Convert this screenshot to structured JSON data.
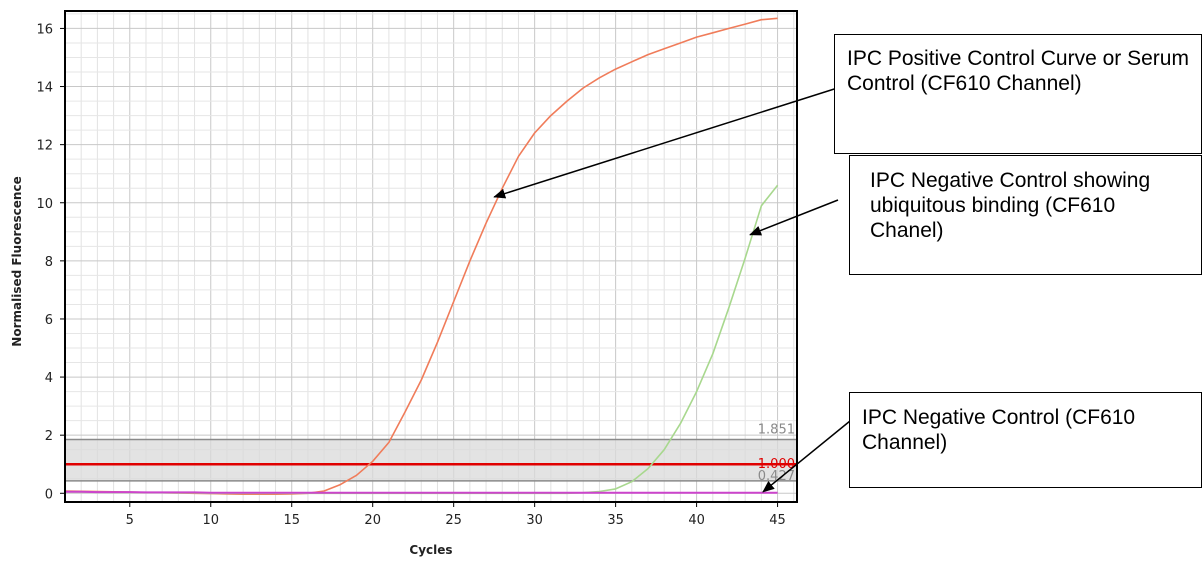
{
  "chart_data": {
    "type": "line",
    "xlabel": "Cycles",
    "ylabel": "Normalised Fluorescence",
    "xlim": [
      1,
      46.2
    ],
    "ylim": [
      -0.3,
      16.6
    ],
    "xticks": [
      5,
      10,
      15,
      20,
      25,
      30,
      35,
      40,
      45
    ],
    "yticks": [
      0,
      2,
      4,
      6,
      8,
      10,
      12,
      14,
      16
    ],
    "grid": true,
    "x": [
      1,
      2,
      3,
      4,
      5,
      6,
      7,
      8,
      9,
      10,
      11,
      12,
      13,
      14,
      15,
      16,
      17,
      18,
      19,
      20,
      21,
      22,
      23,
      24,
      25,
      26,
      27,
      28,
      29,
      30,
      31,
      32,
      33,
      34,
      35,
      36,
      37,
      38,
      39,
      40,
      41,
      42,
      43,
      44,
      45
    ],
    "series": [
      {
        "color": "#f07c5a",
        "values": [
          0.08,
          0.07,
          0.06,
          0.05,
          0.04,
          0.03,
          0.02,
          0.01,
          0.0,
          -0.01,
          -0.02,
          -0.03,
          -0.03,
          -0.03,
          -0.02,
          0.0,
          0.08,
          0.3,
          0.62,
          1.1,
          1.75,
          2.8,
          3.9,
          5.2,
          6.6,
          8.0,
          9.3,
          10.5,
          11.6,
          12.4,
          13.0,
          13.5,
          13.95,
          14.3,
          14.6,
          14.85,
          15.1,
          15.3,
          15.5,
          15.7,
          15.85,
          16.0,
          16.15,
          16.3,
          16.35
        ]
      },
      {
        "color": "#a8d88e",
        "values": [
          0.05,
          0.04,
          0.04,
          0.03,
          0.03,
          0.02,
          0.02,
          0.01,
          0.01,
          0.0,
          0.0,
          0.0,
          0.0,
          0.0,
          0.0,
          0.0,
          0.0,
          0.0,
          0.0,
          0.0,
          0.0,
          0.0,
          0.0,
          0.0,
          0.0,
          0.0,
          0.0,
          0.0,
          0.0,
          0.0,
          0.0,
          0.0,
          0.02,
          0.06,
          0.15,
          0.4,
          0.85,
          1.5,
          2.4,
          3.5,
          4.8,
          6.4,
          8.1,
          9.9,
          10.6
        ]
      },
      {
        "color": "#cc44cc",
        "values": [
          0.05,
          0.05,
          0.04,
          0.04,
          0.04,
          0.03,
          0.03,
          0.03,
          0.03,
          0.02,
          0.02,
          0.02,
          0.02,
          0.02,
          0.02,
          0.02,
          0.02,
          0.02,
          0.02,
          0.02,
          0.02,
          0.02,
          0.02,
          0.02,
          0.02,
          0.02,
          0.02,
          0.02,
          0.02,
          0.02,
          0.02,
          0.02,
          0.02,
          0.02,
          0.02,
          0.02,
          0.02,
          0.02,
          0.02,
          0.02,
          0.02,
          0.02,
          0.02,
          0.02,
          0.02
        ]
      }
    ],
    "threshold_band": {
      "low": 0.427,
      "high": 1.851,
      "low_label": "0.427",
      "high_label": "1.851",
      "color": "#d9d9d9"
    },
    "threshold": {
      "value": 1.0,
      "label": "1.000",
      "color": "#e00000"
    }
  },
  "annotations": [
    {
      "id": "positive",
      "text": "IPC Positive Control Curve or Serum Control (CF610 Channel)",
      "arrow_to": [
        27.5,
        10.2
      ]
    },
    {
      "id": "ubiquitous",
      "text": "IPC Negative Control showing ubiquitous binding (CF610 Chanel)",
      "arrow_to": [
        43.3,
        8.9
      ]
    },
    {
      "id": "negative",
      "text": "IPC Negative Control (CF610 Channel)",
      "arrow_to": [
        44.1,
        0.05
      ]
    }
  ]
}
